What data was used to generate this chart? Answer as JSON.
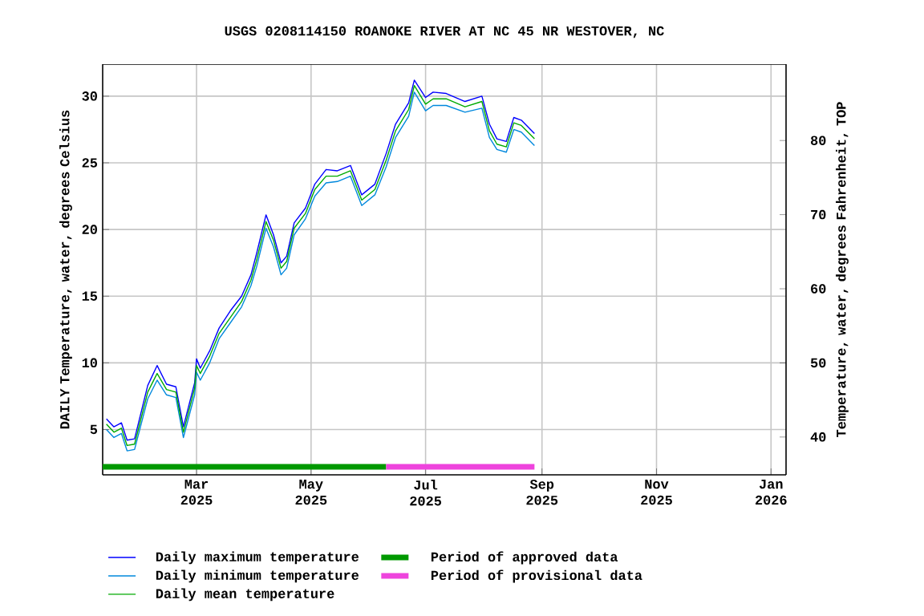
{
  "chart_data": {
    "type": "line",
    "title": "USGS 0208114150 ROANOKE RIVER AT NC 45 NR WESTOVER, NC",
    "ylabel": "DAILY Temperature, water, degrees Celsius",
    "y2label": "Temperature, water, degrees Fahrenheit, TOP",
    "x": [
      "2025-01-12",
      "2025-01-16",
      "2025-01-20",
      "2025-01-23",
      "2025-01-27",
      "2025-02-03",
      "2025-02-08",
      "2025-02-13",
      "2025-02-18",
      "2025-02-22",
      "2025-02-28",
      "2025-03-01",
      "2025-03-03",
      "2025-03-08",
      "2025-03-13",
      "2025-03-19",
      "2025-03-25",
      "2025-03-30",
      "2025-04-02",
      "2025-04-07",
      "2025-04-11",
      "2025-04-15",
      "2025-04-18",
      "2025-04-22",
      "2025-04-28",
      "2025-05-03",
      "2025-05-09",
      "2025-05-15",
      "2025-05-22",
      "2025-05-28",
      "2025-06-04",
      "2025-06-10",
      "2025-06-15",
      "2025-06-22",
      "2025-06-25",
      "2025-07-01",
      "2025-07-05",
      "2025-07-12",
      "2025-07-22",
      "2025-07-31",
      "2025-08-04",
      "2025-08-08",
      "2025-08-13",
      "2025-08-17",
      "2025-08-21",
      "2025-08-28"
    ],
    "series": [
      {
        "name": "Daily maximum temperature",
        "color": "#0000ff",
        "values": [
          5.8,
          5.2,
          5.5,
          4.2,
          4.3,
          8.3,
          9.8,
          8.4,
          8.2,
          5.2,
          8.5,
          10.3,
          9.6,
          10.9,
          12.6,
          13.9,
          15.0,
          16.6,
          18.2,
          21.1,
          19.6,
          17.5,
          18.0,
          20.5,
          21.6,
          23.4,
          24.5,
          24.4,
          24.8,
          22.6,
          23.4,
          25.7,
          27.9,
          29.5,
          31.2,
          29.9,
          30.3,
          30.2,
          29.6,
          30.0,
          27.9,
          26.8,
          26.6,
          28.4,
          28.2,
          27.2
        ]
      },
      {
        "name": "Daily minimum temperature",
        "color": "#0088dd",
        "values": [
          5.0,
          4.4,
          4.7,
          3.4,
          3.5,
          7.3,
          8.7,
          7.6,
          7.4,
          4.4,
          7.6,
          9.3,
          8.7,
          10.0,
          11.8,
          13.0,
          14.2,
          15.8,
          17.2,
          20.1,
          18.7,
          16.6,
          17.1,
          19.6,
          20.8,
          22.5,
          23.5,
          23.6,
          24.0,
          21.8,
          22.6,
          24.7,
          26.9,
          28.5,
          30.3,
          28.9,
          29.3,
          29.3,
          28.8,
          29.1,
          26.9,
          26.0,
          25.8,
          27.5,
          27.3,
          26.3
        ]
      },
      {
        "name": "Daily mean temperature",
        "color": "#00aa00",
        "values": [
          5.4,
          4.8,
          5.1,
          3.8,
          3.9,
          7.8,
          9.2,
          8.0,
          7.8,
          4.8,
          8.1,
          9.8,
          9.2,
          10.5,
          12.2,
          13.4,
          14.6,
          16.2,
          17.7,
          20.6,
          19.2,
          17.1,
          17.6,
          20.1,
          21.2,
          23.0,
          24.0,
          24.0,
          24.4,
          22.2,
          23.0,
          25.2,
          27.4,
          29.0,
          30.8,
          29.4,
          29.8,
          29.8,
          29.2,
          29.6,
          27.4,
          26.4,
          26.2,
          28.0,
          27.8,
          26.8
        ]
      },
      {
        "name": "Period of approved data",
        "color": "#009900",
        "x": [
          "2025-01-10",
          "2025-06-10"
        ],
        "values": [
          2.2,
          2.2
        ]
      },
      {
        "name": "Period of provisional data",
        "color": "#ee44dd",
        "x": [
          "2025-06-10",
          "2025-08-28"
        ],
        "values": [
          2.2,
          2.2
        ]
      }
    ],
    "xlim": [
      "2025-01-10",
      "2026-01-09"
    ],
    "xticks": [
      {
        "value": "2025-03-01",
        "label": "Mar 2025"
      },
      {
        "value": "2025-05-01",
        "label": "May 2025"
      },
      {
        "value": "2025-07-01",
        "label": "Jul 2025"
      },
      {
        "value": "2025-09-01",
        "label": "Sep 2025"
      },
      {
        "value": "2025-11-01",
        "label": "Nov 2025"
      },
      {
        "value": "2026-01-01",
        "label": "Jan 2026"
      }
    ],
    "ylim": [
      1.6,
      32.4
    ],
    "yticks": [
      5,
      10,
      15,
      20,
      25,
      30
    ],
    "y2lim": [
      34.9,
      90.3
    ],
    "y2ticks": [
      40,
      50,
      60,
      70,
      80
    ],
    "grid": true,
    "legend": "bottom"
  }
}
